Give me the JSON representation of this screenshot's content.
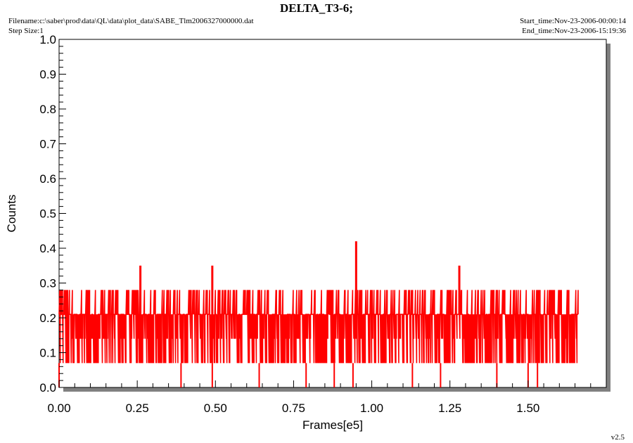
{
  "header": {
    "title": "DELTA_T3-6;",
    "filename": "Filename:c:\\saber\\prod\\data\\QL\\data\\plot_data\\SABE_Tlm2006327000000.dat",
    "step_size": "Step Size:1",
    "start_time": "Start_time:Nov-23-2006-00:00:14",
    "end_time": "End_time:Nov-23-2006-15:19:36",
    "version": "v2.5"
  },
  "colors": {
    "series": "#ff0000",
    "shadow": "#808080",
    "frame": "#000000"
  },
  "chart_data": {
    "type": "line",
    "title": "DELTA_T3-6;",
    "xlabel": "Frames[e5]",
    "ylabel": "Counts",
    "xlim": [
      0,
      1.75
    ],
    "ylim": [
      0,
      1.0
    ],
    "x_ticks": [
      "0.00",
      "0.25",
      "0.50",
      "0.75",
      "1.00",
      "1.25",
      "1.50"
    ],
    "y_ticks": [
      "0.0",
      "0.1",
      "0.2",
      "0.3",
      "0.4",
      "0.5",
      "0.6",
      "0.7",
      "0.8",
      "0.9",
      "1.0"
    ],
    "grid": false,
    "series": [
      {
        "x_range": [
          0,
          1.66
        ],
        "values": [
          0.07,
          0.14,
          0.21,
          0.28
        ],
        "baseline": 0.21,
        "spikes": [
          {
            "x": 0.26,
            "y": 0.35
          },
          {
            "x": 0.49,
            "y": 0.35
          },
          {
            "x": 0.95,
            "y": 0.42
          },
          {
            "x": 1.28,
            "y": 0.35
          }
        ],
        "dips": [
          0.0,
          0.39,
          0.49,
          0.64,
          0.79,
          0.88,
          0.94,
          1.13,
          1.22,
          1.4,
          1.5,
          1.53
        ]
      }
    ]
  }
}
